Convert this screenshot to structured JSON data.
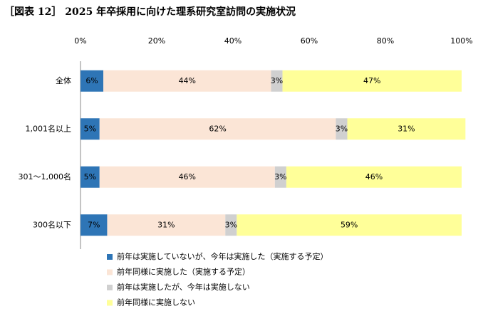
{
  "chart_data": {
    "type": "stacked-bar-horizontal",
    "title": "［図表 12］ 2025 年卒採用に向けた理系研究室訪問の実施状況",
    "categories": [
      "全体",
      "1,001名以上",
      "301～1,000名",
      "300名以下"
    ],
    "series": [
      {
        "name": "前年は実施していないが、今年は実施した（実施する予定）",
        "color": "#2e75b6",
        "values": [
          6,
          5,
          5,
          7
        ],
        "value_labels": [
          "6%",
          "5%",
          "5%",
          "7%"
        ]
      },
      {
        "name": "前年同様に実施した（実施する予定）",
        "color": "#fbe5d6",
        "values": [
          44,
          62,
          46,
          31
        ],
        "value_labels": [
          "44%",
          "62%",
          "46%",
          "31%"
        ]
      },
      {
        "name": "前年は実施したが、今年は実施しない",
        "color": "#d0d0d0",
        "values": [
          3,
          3,
          3,
          3
        ],
        "value_labels": [
          "3%",
          "3%",
          "3%",
          "3%"
        ]
      },
      {
        "name": "前年同様に実施しない",
        "color": "#ffff99",
        "values": [
          47,
          31,
          46,
          59
        ],
        "value_labels": [
          "47%",
          "31%",
          "46%",
          "59%"
        ]
      }
    ],
    "xlim": [
      0,
      100
    ],
    "xticks": [
      {
        "value": 0,
        "label": "0%"
      },
      {
        "value": 20,
        "label": "20%"
      },
      {
        "value": 40,
        "label": "40%"
      },
      {
        "value": 60,
        "label": "60%"
      },
      {
        "value": 80,
        "label": "80%"
      },
      {
        "value": 100,
        "label": "100%"
      }
    ],
    "grid": false,
    "legend": "bottom-left"
  }
}
